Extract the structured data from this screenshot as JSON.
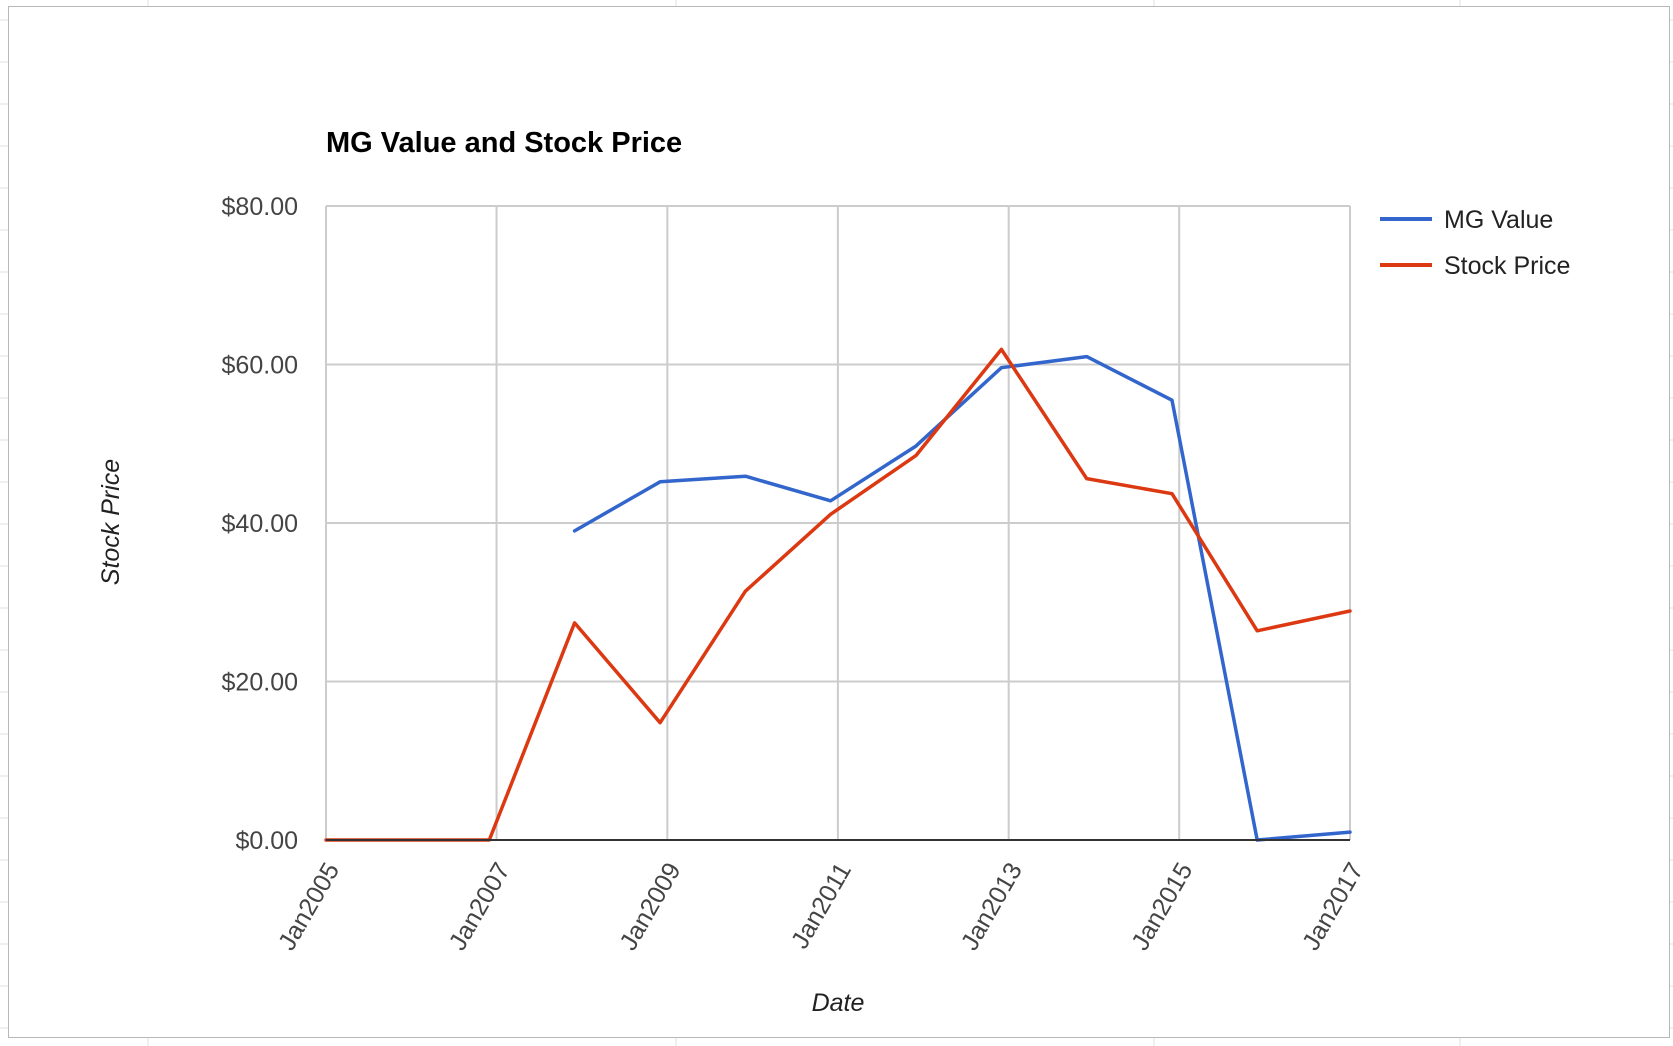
{
  "chart_data": {
    "type": "line",
    "title": "MG Value and Stock Price",
    "xlabel": "Date",
    "ylabel": "Stock Price",
    "x_axis_type": "date",
    "xlim": [
      "2005-01-01",
      "2017-01-01"
    ],
    "ylim": [
      0,
      80
    ],
    "y_ticks": [
      {
        "value": 0,
        "label": "$0.00"
      },
      {
        "value": 20,
        "label": "$20.00"
      },
      {
        "value": 40,
        "label": "$40.00"
      },
      {
        "value": 60,
        "label": "$60.00"
      },
      {
        "value": 80,
        "label": "$80.00"
      }
    ],
    "x_ticks": [
      {
        "value": "2005-01-01",
        "label": "Jan2005"
      },
      {
        "value": "2007-01-01",
        "label": "Jan2007"
      },
      {
        "value": "2009-01-01",
        "label": "Jan2009"
      },
      {
        "value": "2011-01-01",
        "label": "Jan2011"
      },
      {
        "value": "2013-01-01",
        "label": "Jan2013"
      },
      {
        "value": "2015-01-01",
        "label": "Jan2015"
      },
      {
        "value": "2017-01-01",
        "label": "Jan2017"
      }
    ],
    "grid": true,
    "legend_position": "right",
    "series": [
      {
        "name": "MG Value",
        "color": "#3366cc",
        "points": [
          {
            "x": "2007-12-01",
            "y": 39.0
          },
          {
            "x": "2008-12-01",
            "y": 45.2
          },
          {
            "x": "2009-12-01",
            "y": 45.9
          },
          {
            "x": "2010-12-01",
            "y": 42.8
          },
          {
            "x": "2011-12-01",
            "y": 49.7
          },
          {
            "x": "2012-12-01",
            "y": 59.6
          },
          {
            "x": "2013-12-01",
            "y": 61.0
          },
          {
            "x": "2014-12-01",
            "y": 55.5
          },
          {
            "x": "2015-12-01",
            "y": 0.0
          },
          {
            "x": "2017-01-01",
            "y": 1.0
          }
        ]
      },
      {
        "name": "Stock Price",
        "color": "#dc3912",
        "points": [
          {
            "x": "2005-01-01",
            "y": 0.0
          },
          {
            "x": "2006-12-01",
            "y": 0.0
          },
          {
            "x": "2007-12-01",
            "y": 27.4
          },
          {
            "x": "2008-12-01",
            "y": 14.8
          },
          {
            "x": "2009-12-01",
            "y": 31.4
          },
          {
            "x": "2010-12-01",
            "y": 41.1
          },
          {
            "x": "2011-12-01",
            "y": 48.5
          },
          {
            "x": "2012-12-01",
            "y": 61.9
          },
          {
            "x": "2013-12-01",
            "y": 45.6
          },
          {
            "x": "2014-12-01",
            "y": 43.7
          },
          {
            "x": "2015-12-01",
            "y": 26.4
          },
          {
            "x": "2017-01-01",
            "y": 28.9
          }
        ]
      }
    ]
  }
}
